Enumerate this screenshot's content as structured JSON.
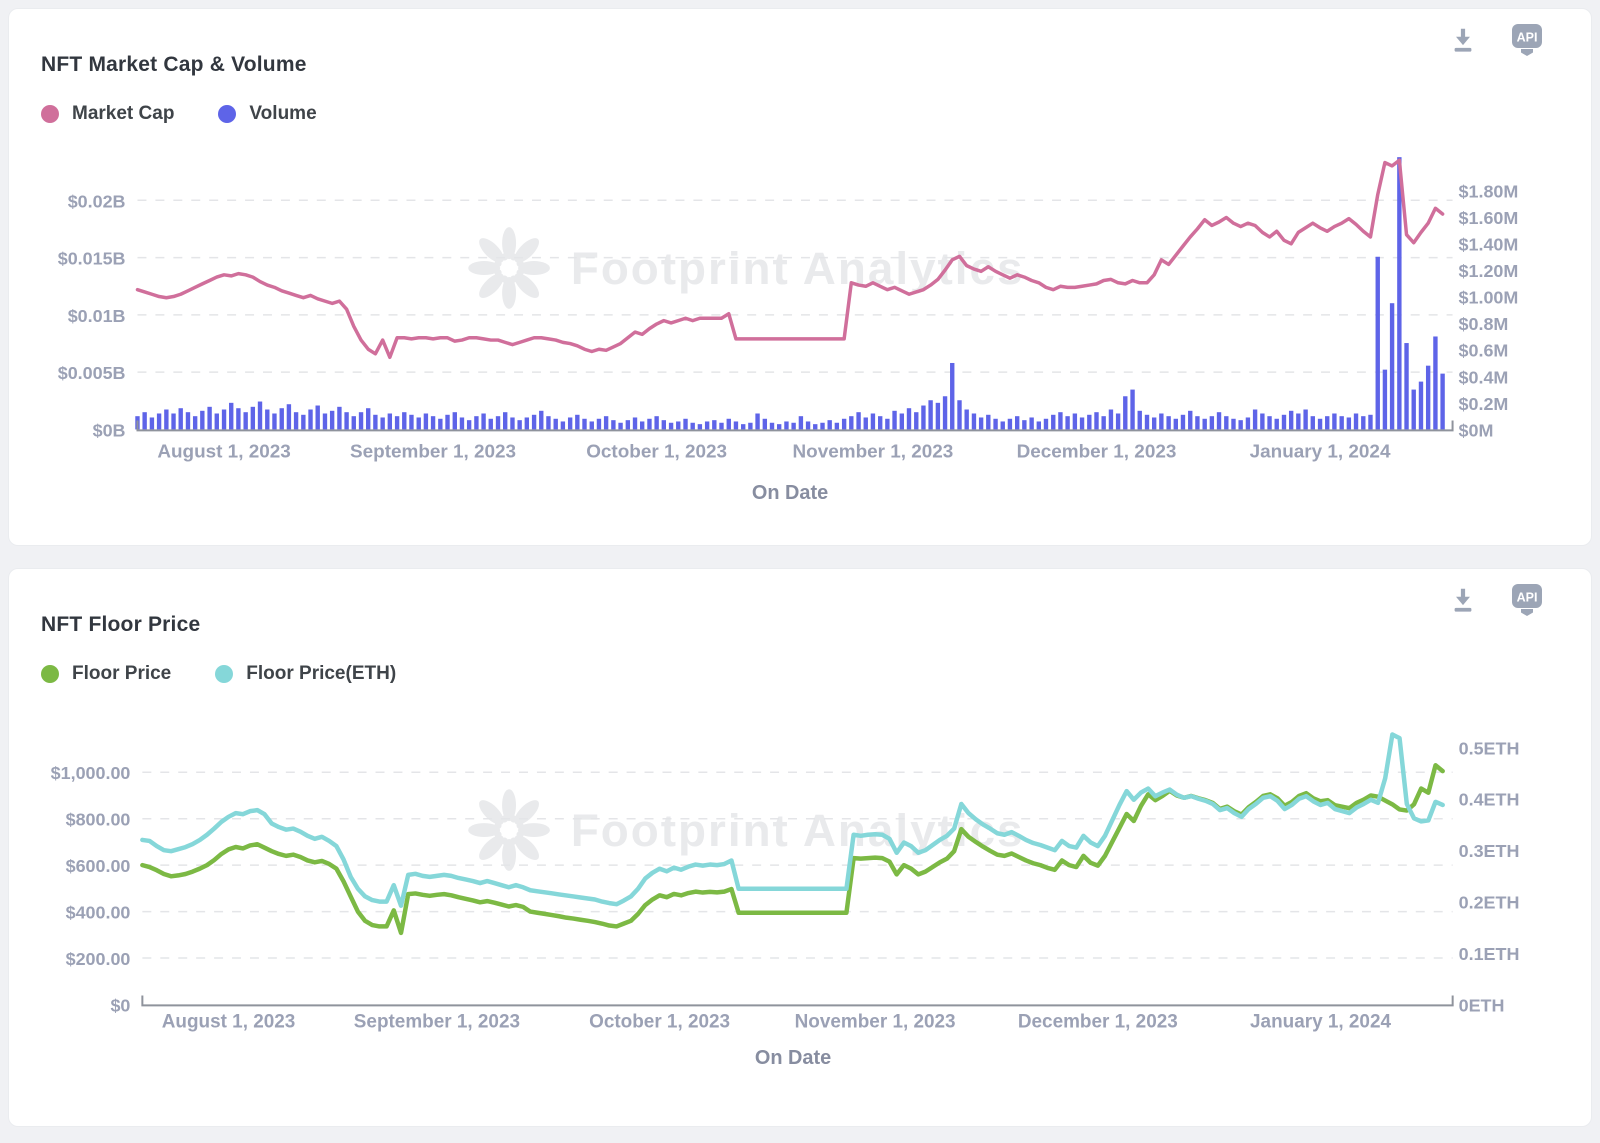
{
  "accent_colors": {
    "market_cap": "#d06f9b",
    "volume": "#5e64e8",
    "floor_price": "#7cb944",
    "floor_price_eth": "#85d7d9",
    "watermark": "#e9eaec",
    "icon_gray": "#9ca5b6"
  },
  "watermark_text": "Footprint Analytics",
  "chart_data": [
    {
      "type": "line+bar",
      "title": "NFT Market Cap & Volume",
      "xlabel": "On Date",
      "watermark": "Footprint Analytics",
      "x_ticks": [
        {
          "i": 12,
          "label": "August 1, 2023"
        },
        {
          "i": 41,
          "label": "September 1, 2023"
        },
        {
          "i": 72,
          "label": "October 1, 2023"
        },
        {
          "i": 102,
          "label": "November 1, 2023"
        },
        {
          "i": 133,
          "label": "December 1, 2023"
        },
        {
          "i": 164,
          "label": "January 1, 2024"
        }
      ],
      "left_axis": {
        "labels": [
          "$0B",
          "$0.005B",
          "$0.01B",
          "$0.015B",
          "$0.02B"
        ],
        "min": 0,
        "max": 0.02,
        "unit": "B USD"
      },
      "right_axis": {
        "labels": [
          "$0M",
          "$0.2M",
          "$0.4M",
          "$0.6M",
          "$0.8M",
          "$1.00M",
          "$1.20M",
          "$1.40M",
          "$1.60M",
          "$1.80M"
        ],
        "min": 0,
        "max": 1.8,
        "unit": "M USD"
      },
      "grid": "dashed-horizontal",
      "legend_position": "top-left",
      "series": [
        {
          "name": "Market Cap",
          "slug": "market-cap-line",
          "type": "line",
          "axis": "left",
          "color": "#d06f9b",
          "values": [
            0.0122,
            0.012,
            0.0118,
            0.0116,
            0.0115,
            0.0116,
            0.0118,
            0.0121,
            0.0124,
            0.0127,
            0.013,
            0.0133,
            0.0135,
            0.0134,
            0.0136,
            0.0135,
            0.0133,
            0.0129,
            0.0126,
            0.0124,
            0.0121,
            0.0119,
            0.0117,
            0.0115,
            0.0117,
            0.0114,
            0.0112,
            0.011,
            0.0112,
            0.0105,
            0.009,
            0.0078,
            0.007,
            0.0066,
            0.0078,
            0.0063,
            0.008,
            0.008,
            0.0079,
            0.008,
            0.008,
            0.0079,
            0.008,
            0.008,
            0.0077,
            0.0078,
            0.008,
            0.008,
            0.0079,
            0.0078,
            0.0078,
            0.0076,
            0.0074,
            0.0076,
            0.0078,
            0.008,
            0.008,
            0.0079,
            0.0078,
            0.0076,
            0.0075,
            0.0073,
            0.007,
            0.0068,
            0.007,
            0.0069,
            0.0072,
            0.0075,
            0.008,
            0.0085,
            0.0083,
            0.0088,
            0.0092,
            0.0095,
            0.0093,
            0.0095,
            0.0097,
            0.0095,
            0.0097,
            0.0097,
            0.0097,
            0.0097,
            0.0101,
            0.0079,
            0.0079,
            0.0079,
            0.0079,
            0.0079,
            0.0079,
            0.0079,
            0.0079,
            0.0079,
            0.0079,
            0.0079,
            0.0079,
            0.0079,
            0.0079,
            0.0079,
            0.0079,
            0.0128,
            0.0126,
            0.0125,
            0.0128,
            0.0125,
            0.0122,
            0.0124,
            0.0121,
            0.0118,
            0.012,
            0.0122,
            0.0126,
            0.0131,
            0.0139,
            0.0148,
            0.0151,
            0.0143,
            0.014,
            0.0138,
            0.0142,
            0.0138,
            0.0135,
            0.0132,
            0.0135,
            0.0133,
            0.013,
            0.0128,
            0.0124,
            0.0122,
            0.0125,
            0.0124,
            0.0124,
            0.0125,
            0.0126,
            0.0127,
            0.013,
            0.0131,
            0.0128,
            0.0127,
            0.013,
            0.0128,
            0.0128,
            0.0135,
            0.0148,
            0.0144,
            0.0152,
            0.016,
            0.0168,
            0.0175,
            0.0183,
            0.0178,
            0.0181,
            0.0185,
            0.018,
            0.0177,
            0.018,
            0.0178,
            0.0172,
            0.0168,
            0.0173,
            0.0165,
            0.0162,
            0.0172,
            0.0176,
            0.018,
            0.0176,
            0.0173,
            0.0177,
            0.018,
            0.0184,
            0.0179,
            0.0173,
            0.0168,
            0.0205,
            0.0233,
            0.023,
            0.0235,
            0.017,
            0.0163,
            0.0172,
            0.018,
            0.0193,
            0.0188
          ]
        },
        {
          "name": "Volume",
          "slug": "volume-bars",
          "type": "bar",
          "axis": "right",
          "color": "#5e64e8",
          "values": [
            0.1,
            0.13,
            0.09,
            0.12,
            0.15,
            0.12,
            0.16,
            0.13,
            0.1,
            0.14,
            0.17,
            0.12,
            0.15,
            0.2,
            0.16,
            0.13,
            0.17,
            0.21,
            0.15,
            0.12,
            0.16,
            0.19,
            0.13,
            0.11,
            0.15,
            0.18,
            0.12,
            0.14,
            0.17,
            0.13,
            0.1,
            0.13,
            0.16,
            0.11,
            0.09,
            0.12,
            0.1,
            0.13,
            0.11,
            0.09,
            0.12,
            0.1,
            0.08,
            0.11,
            0.13,
            0.09,
            0.07,
            0.1,
            0.12,
            0.08,
            0.1,
            0.13,
            0.09,
            0.07,
            0.09,
            0.11,
            0.14,
            0.1,
            0.08,
            0.06,
            0.09,
            0.11,
            0.08,
            0.06,
            0.08,
            0.1,
            0.07,
            0.05,
            0.07,
            0.09,
            0.06,
            0.08,
            0.1,
            0.07,
            0.05,
            0.06,
            0.08,
            0.05,
            0.04,
            0.06,
            0.07,
            0.05,
            0.08,
            0.06,
            0.04,
            0.05,
            0.12,
            0.08,
            0.05,
            0.04,
            0.06,
            0.05,
            0.1,
            0.06,
            0.04,
            0.05,
            0.07,
            0.05,
            0.08,
            0.1,
            0.13,
            0.09,
            0.12,
            0.1,
            0.08,
            0.14,
            0.12,
            0.16,
            0.13,
            0.18,
            0.22,
            0.2,
            0.25,
            0.5,
            0.22,
            0.15,
            0.12,
            0.09,
            0.11,
            0.08,
            0.06,
            0.08,
            0.1,
            0.07,
            0.09,
            0.06,
            0.08,
            0.11,
            0.13,
            0.1,
            0.12,
            0.09,
            0.11,
            0.13,
            0.1,
            0.15,
            0.12,
            0.25,
            0.3,
            0.14,
            0.11,
            0.09,
            0.12,
            0.1,
            0.08,
            0.11,
            0.14,
            0.1,
            0.08,
            0.1,
            0.13,
            0.1,
            0.08,
            0.07,
            0.09,
            0.15,
            0.12,
            0.1,
            0.08,
            0.11,
            0.14,
            0.12,
            0.15,
            0.1,
            0.08,
            0.1,
            0.12,
            0.1,
            0.09,
            0.12,
            0.1,
            0.11,
            1.3,
            0.45,
            0.95,
            2.05,
            0.65,
            0.3,
            0.36,
            0.48,
            0.7,
            0.42
          ]
        }
      ]
    },
    {
      "type": "line",
      "title": "NFT Floor Price",
      "xlabel": "On Date",
      "watermark": "Footprint Analytics",
      "x_ticks": [
        {
          "i": 12,
          "label": "August 1, 2023"
        },
        {
          "i": 41,
          "label": "September 1, 2023"
        },
        {
          "i": 72,
          "label": "October 1, 2023"
        },
        {
          "i": 102,
          "label": "November 1, 2023"
        },
        {
          "i": 133,
          "label": "December 1, 2023"
        },
        {
          "i": 164,
          "label": "January 1, 2024"
        }
      ],
      "left_axis": {
        "labels": [
          "$0",
          "$200.00",
          "$400.00",
          "$600.00",
          "$800.00",
          "$1,000.00"
        ],
        "min": 0,
        "max": 1000,
        "unit": "USD"
      },
      "right_axis": {
        "labels": [
          "0ETH",
          "0.1ETH",
          "0.2ETH",
          "0.3ETH",
          "0.4ETH",
          "0.5ETH"
        ],
        "min": 0,
        "max": 0.5,
        "unit": "ETH"
      },
      "grid": "dashed-horizontal",
      "legend_position": "top-left",
      "series": [
        {
          "name": "Floor Price",
          "slug": "floor-price-line",
          "type": "line",
          "axis": "left",
          "color": "#7cb944",
          "values": [
            600,
            592,
            578,
            562,
            552,
            556,
            562,
            572,
            585,
            600,
            622,
            648,
            668,
            678,
            672,
            685,
            690,
            675,
            660,
            648,
            640,
            645,
            635,
            620,
            612,
            618,
            605,
            585,
            530,
            465,
            400,
            360,
            342,
            336,
            336,
            405,
            308,
            475,
            478,
            472,
            468,
            472,
            475,
            470,
            462,
            455,
            448,
            440,
            445,
            438,
            430,
            422,
            428,
            420,
            400,
            395,
            390,
            385,
            380,
            374,
            370,
            365,
            360,
            355,
            348,
            340,
            336,
            348,
            360,
            390,
            428,
            452,
            470,
            462,
            476,
            470,
            480,
            486,
            482,
            485,
            483,
            486,
            497,
            395,
            395,
            395,
            395,
            395,
            395,
            395,
            395,
            395,
            395,
            395,
            395,
            395,
            395,
            395,
            395,
            630,
            628,
            630,
            632,
            630,
            615,
            560,
            600,
            585,
            560,
            572,
            592,
            612,
            628,
            660,
            755,
            722,
            700,
            680,
            662,
            645,
            640,
            650,
            635,
            620,
            608,
            600,
            588,
            580,
            620,
            600,
            592,
            640,
            610,
            598,
            640,
            700,
            760,
            820,
            790,
            855,
            905,
            880,
            898,
            920,
            900,
            890,
            898,
            888,
            880,
            868,
            842,
            852,
            832,
            818,
            850,
            872,
            898,
            905,
            888,
            856,
            872,
            898,
            910,
            888,
            875,
            880,
            858,
            852,
            845,
            868,
            882,
            900,
            895,
            878,
            862,
            840,
            835,
            862,
            930,
            912,
            1030,
            1005
          ]
        },
        {
          "name": "Floor Price(ETH)",
          "slug": "floor-price-eth-line",
          "type": "line",
          "axis": "right",
          "color": "#85d7d9",
          "values": [
            0.32,
            0.318,
            0.308,
            0.3,
            0.298,
            0.302,
            0.306,
            0.312,
            0.32,
            0.33,
            0.342,
            0.355,
            0.365,
            0.372,
            0.37,
            0.376,
            0.378,
            0.37,
            0.352,
            0.345,
            0.34,
            0.342,
            0.336,
            0.328,
            0.322,
            0.326,
            0.318,
            0.308,
            0.282,
            0.248,
            0.225,
            0.21,
            0.203,
            0.2,
            0.2,
            0.232,
            0.192,
            0.252,
            0.254,
            0.25,
            0.248,
            0.25,
            0.252,
            0.25,
            0.246,
            0.243,
            0.24,
            0.236,
            0.24,
            0.236,
            0.232,
            0.228,
            0.232,
            0.228,
            0.222,
            0.22,
            0.218,
            0.216,
            0.214,
            0.212,
            0.21,
            0.208,
            0.206,
            0.204,
            0.2,
            0.197,
            0.195,
            0.202,
            0.21,
            0.225,
            0.245,
            0.256,
            0.264,
            0.259,
            0.266,
            0.262,
            0.268,
            0.272,
            0.27,
            0.272,
            0.271,
            0.273,
            0.28,
            0.225,
            0.225,
            0.225,
            0.225,
            0.225,
            0.225,
            0.225,
            0.225,
            0.225,
            0.225,
            0.225,
            0.225,
            0.225,
            0.225,
            0.225,
            0.225,
            0.33,
            0.328,
            0.33,
            0.331,
            0.33,
            0.322,
            0.295,
            0.315,
            0.308,
            0.295,
            0.3,
            0.31,
            0.32,
            0.328,
            0.342,
            0.39,
            0.372,
            0.36,
            0.35,
            0.342,
            0.333,
            0.33,
            0.335,
            0.328,
            0.32,
            0.314,
            0.31,
            0.305,
            0.3,
            0.318,
            0.308,
            0.305,
            0.328,
            0.315,
            0.308,
            0.328,
            0.358,
            0.388,
            0.415,
            0.398,
            0.412,
            0.42,
            0.405,
            0.412,
            0.418,
            0.408,
            0.402,
            0.405,
            0.4,
            0.396,
            0.39,
            0.378,
            0.382,
            0.372,
            0.365,
            0.38,
            0.39,
            0.402,
            0.405,
            0.396,
            0.38,
            0.388,
            0.4,
            0.405,
            0.395,
            0.388,
            0.392,
            0.38,
            0.376,
            0.372,
            0.383,
            0.39,
            0.398,
            0.392,
            0.44,
            0.525,
            0.518,
            0.39,
            0.362,
            0.356,
            0.358,
            0.394,
            0.388
          ]
        }
      ]
    }
  ]
}
